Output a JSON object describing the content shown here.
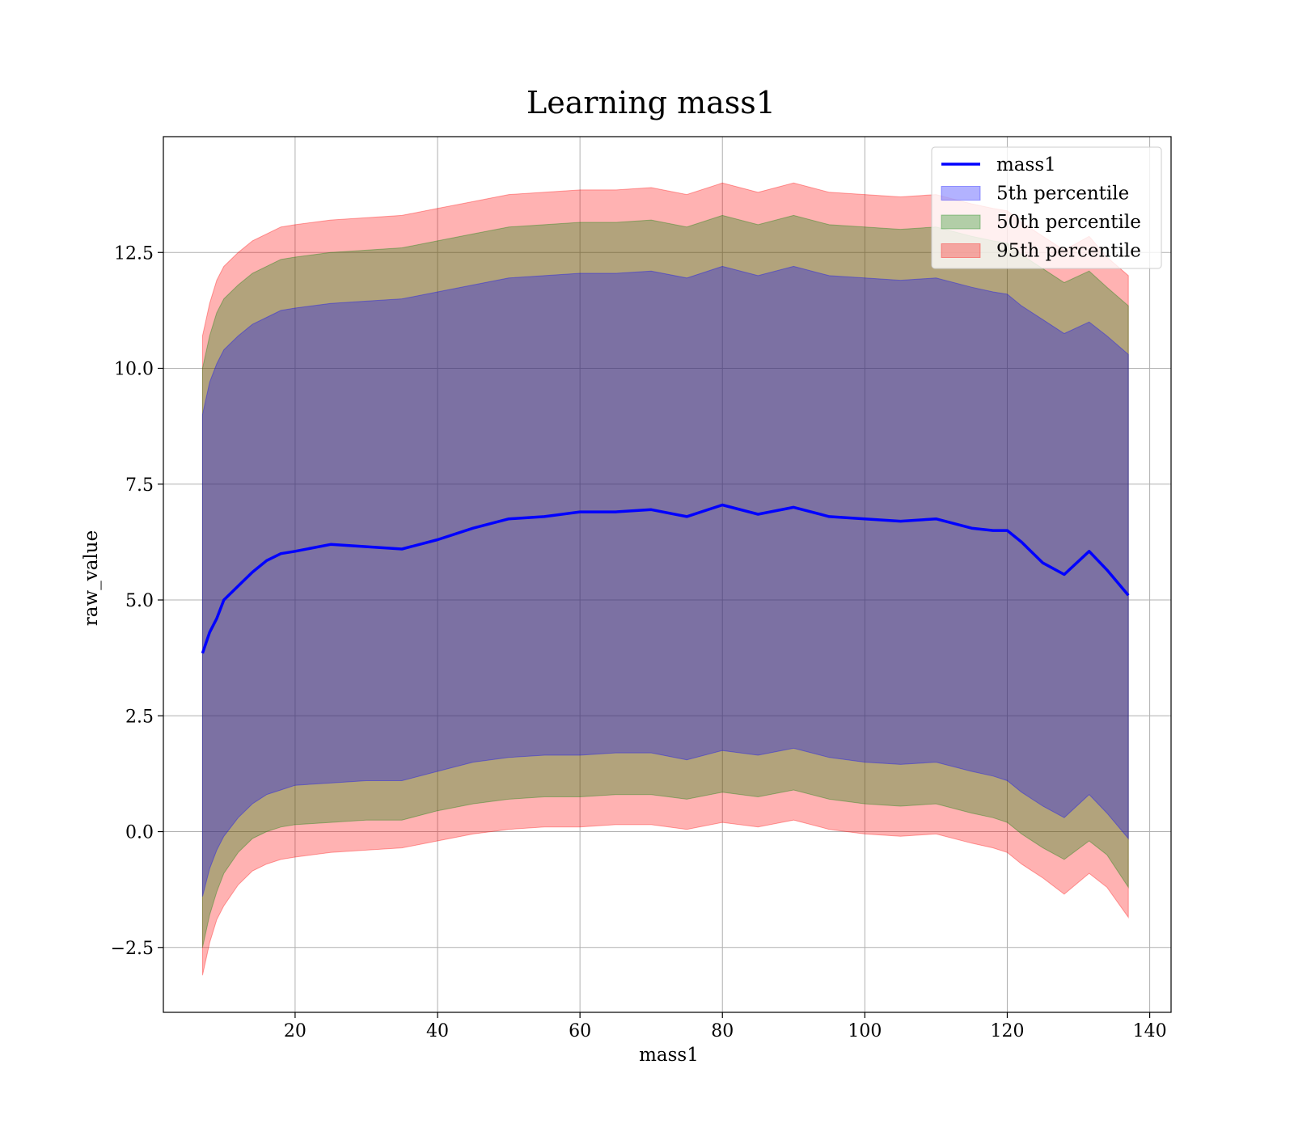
{
  "chart_data": {
    "type": "area",
    "title": "Learning mass1",
    "xlabel": "mass1",
    "ylabel": "raw_value",
    "xlim": [
      1.5,
      143
    ],
    "ylim": [
      -3.9,
      15.0
    ],
    "xticks": [
      20,
      40,
      60,
      80,
      100,
      120,
      140
    ],
    "xtick_labels": [
      "20",
      "40",
      "60",
      "80",
      "100",
      "120",
      "140"
    ],
    "yticks": [
      -2.5,
      0.0,
      2.5,
      5.0,
      7.5,
      10.0,
      12.5
    ],
    "ytick_labels": [
      "−2.5",
      "0.0",
      "2.5",
      "5.0",
      "7.5",
      "10.0",
      "12.5"
    ],
    "grid": true,
    "legend_position": "top-right",
    "x": [
      7,
      8,
      9,
      10,
      12,
      14,
      16,
      18,
      20,
      25,
      30,
      35,
      40,
      45,
      50,
      55,
      60,
      65,
      70,
      75,
      80,
      85,
      90,
      95,
      100,
      105,
      110,
      115,
      118,
      120,
      122,
      125,
      128,
      131.5,
      134,
      137
    ],
    "series": [
      {
        "name": "mass1",
        "kind": "line",
        "color": "#0000ff",
        "values": [
          3.85,
          4.3,
          4.6,
          5.0,
          5.3,
          5.6,
          5.85,
          6.0,
          6.05,
          6.2,
          6.15,
          6.1,
          6.3,
          6.55,
          6.75,
          6.8,
          6.9,
          6.9,
          6.95,
          6.8,
          7.05,
          6.85,
          7.0,
          6.8,
          6.75,
          6.7,
          6.75,
          6.55,
          6.5,
          6.5,
          6.25,
          5.8,
          5.55,
          6.05,
          5.65,
          5.1
        ]
      },
      {
        "name": "5th percentile",
        "kind": "band",
        "color": "#0000ff",
        "lower": [
          -1.4,
          -0.8,
          -0.4,
          -0.1,
          0.3,
          0.6,
          0.8,
          0.9,
          1.0,
          1.05,
          1.1,
          1.1,
          1.3,
          1.5,
          1.6,
          1.65,
          1.65,
          1.7,
          1.7,
          1.55,
          1.75,
          1.65,
          1.8,
          1.6,
          1.5,
          1.45,
          1.5,
          1.3,
          1.2,
          1.1,
          0.85,
          0.55,
          0.3,
          0.8,
          0.4,
          -0.15
        ],
        "upper": [
          9.0,
          9.7,
          10.1,
          10.4,
          10.7,
          10.95,
          11.1,
          11.25,
          11.3,
          11.4,
          11.45,
          11.5,
          11.65,
          11.8,
          11.95,
          12.0,
          12.05,
          12.05,
          12.1,
          11.95,
          12.2,
          12.0,
          12.2,
          12.0,
          11.95,
          11.9,
          11.95,
          11.75,
          11.65,
          11.6,
          11.35,
          11.05,
          10.75,
          11.0,
          10.7,
          10.3
        ]
      },
      {
        "name": "50th percentile",
        "kind": "band",
        "color": "#008000",
        "lower": [
          -2.5,
          -1.8,
          -1.3,
          -0.9,
          -0.45,
          -0.15,
          0.0,
          0.1,
          0.15,
          0.2,
          0.25,
          0.25,
          0.45,
          0.6,
          0.7,
          0.75,
          0.75,
          0.8,
          0.8,
          0.7,
          0.85,
          0.75,
          0.9,
          0.7,
          0.6,
          0.55,
          0.6,
          0.4,
          0.3,
          0.2,
          -0.05,
          -0.35,
          -0.6,
          -0.2,
          -0.5,
          -1.2
        ],
        "upper": [
          10.0,
          10.7,
          11.2,
          11.5,
          11.8,
          12.05,
          12.2,
          12.35,
          12.4,
          12.5,
          12.55,
          12.6,
          12.75,
          12.9,
          13.05,
          13.1,
          13.15,
          13.15,
          13.2,
          13.05,
          13.3,
          13.1,
          13.3,
          13.1,
          13.05,
          13.0,
          13.05,
          12.85,
          12.75,
          12.7,
          12.45,
          12.15,
          11.85,
          12.1,
          11.75,
          11.35
        ]
      },
      {
        "name": "95th percentile",
        "kind": "band",
        "color": "#ff0000",
        "lower": [
          -3.1,
          -2.4,
          -1.9,
          -1.6,
          -1.15,
          -0.85,
          -0.7,
          -0.6,
          -0.55,
          -0.45,
          -0.4,
          -0.35,
          -0.2,
          -0.05,
          0.05,
          0.1,
          0.1,
          0.15,
          0.15,
          0.05,
          0.2,
          0.1,
          0.25,
          0.05,
          -0.05,
          -0.1,
          -0.05,
          -0.25,
          -0.35,
          -0.45,
          -0.7,
          -1.0,
          -1.35,
          -0.9,
          -1.2,
          -1.85
        ],
        "upper": [
          10.7,
          11.4,
          11.9,
          12.2,
          12.5,
          12.75,
          12.9,
          13.05,
          13.1,
          13.2,
          13.25,
          13.3,
          13.45,
          13.6,
          13.75,
          13.8,
          13.85,
          13.85,
          13.9,
          13.75,
          14.0,
          13.8,
          14.0,
          13.8,
          13.75,
          13.7,
          13.75,
          13.55,
          13.45,
          13.4,
          13.15,
          12.85,
          12.55,
          12.85,
          12.4,
          12.0
        ]
      }
    ]
  }
}
